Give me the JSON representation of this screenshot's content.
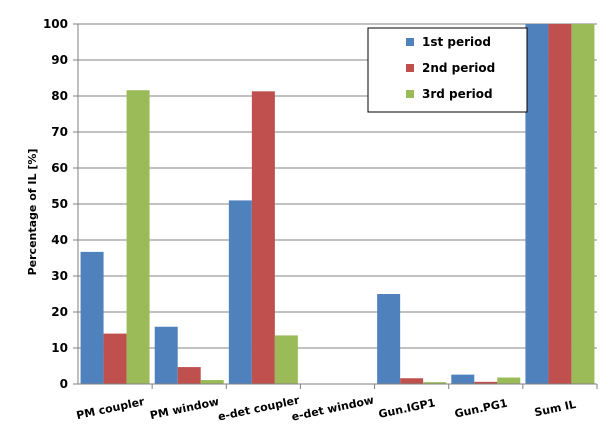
{
  "chart_data": {
    "type": "bar",
    "title": "",
    "xlabel": "",
    "ylabel": "Percentage of IL [%]",
    "ylim": [
      0,
      100
    ],
    "yticks": [
      0,
      10,
      20,
      30,
      40,
      50,
      60,
      70,
      80,
      90,
      100
    ],
    "grid": "horizontal",
    "legend_position": "top-right",
    "categories": [
      "PM coupler",
      "PM window",
      "e-det coupler",
      "e-det window",
      "Gun.IGP1",
      "Gun.PG1",
      "Sum IL"
    ],
    "series": [
      {
        "name": "1st period",
        "color": "#4f81bd",
        "values": [
          36.7,
          15.9,
          51,
          0,
          25,
          2.6,
          100
        ]
      },
      {
        "name": "2nd period",
        "color": "#c0504d",
        "values": [
          14,
          4.7,
          81.3,
          0,
          1.6,
          0.6,
          100
        ]
      },
      {
        "name": "3rd period",
        "color": "#9bbb59",
        "values": [
          81.6,
          1.1,
          13.5,
          0,
          0.5,
          1.8,
          100
        ]
      }
    ]
  }
}
